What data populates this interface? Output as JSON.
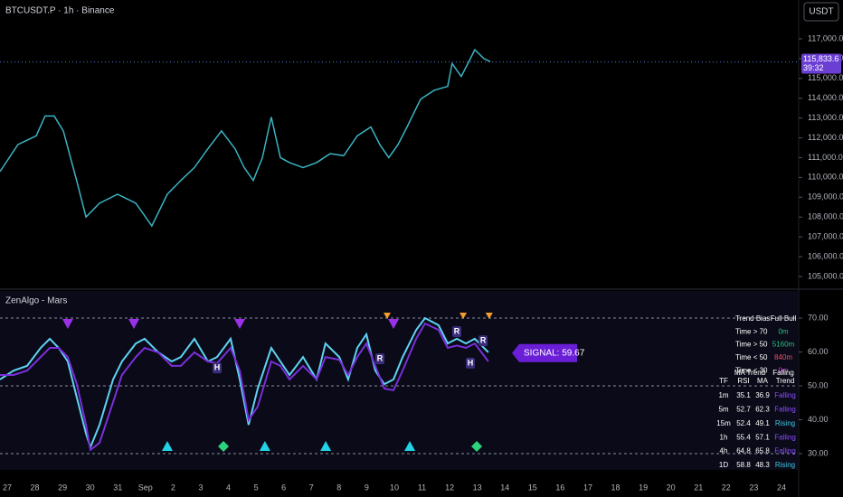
{
  "header": {
    "symbol": "BTCUSDT.P · 1h · Binance",
    "currency_button": "USDT"
  },
  "chart_data": [
    {
      "type": "line",
      "color": "#3bb3c3",
      "x": [
        -0.26,
        0.39,
        1.05,
        1.37,
        1.7,
        2.03,
        2.52,
        2.85,
        3.34,
        3.99,
        4.65,
        5.23,
        5.79,
        6.28,
        6.77,
        7.26,
        7.75,
        8.24,
        8.57,
        8.9,
        9.23,
        9.55,
        9.88,
        10.21,
        10.7,
        11.19,
        11.68,
        12.17,
        12.66,
        13.15,
        13.48,
        13.8,
        14.13,
        14.46,
        14.95,
        15.44,
        15.93,
        16.09,
        16.42,
        16.75,
        16.91,
        17.24,
        17.47
      ],
      "values": [
        110300,
        111660,
        112100,
        113100,
        113100,
        112350,
        109800,
        108000,
        108700,
        109150,
        108700,
        107550,
        109150,
        109850,
        110500,
        111450,
        112350,
        111450,
        110500,
        109850,
        111000,
        113050,
        111000,
        110750,
        110500,
        110750,
        111200,
        111100,
        112100,
        112550,
        111650,
        111000,
        111650,
        112550,
        113950,
        114400,
        114600,
        115750,
        115100,
        116000,
        116450,
        116000,
        115850
      ],
      "xlim": [
        -0.26,
        28.59
      ],
      "ylim": [
        104450,
        118960
      ],
      "yticks": [
        {
          "value": 105000,
          "label": "105,000.0"
        },
        {
          "value": 106000,
          "label": "106,000.0"
        },
        {
          "value": 107000,
          "label": "107,000.0"
        },
        {
          "value": 108000,
          "label": "108,000.0"
        },
        {
          "value": 109000,
          "label": "109,000.0"
        },
        {
          "value": 110000,
          "label": "110,000.0"
        },
        {
          "value": 111000,
          "label": "111,000.0"
        },
        {
          "value": 112000,
          "label": "112,000.0"
        },
        {
          "value": 113000,
          "label": "113,000.0"
        },
        {
          "value": 114000,
          "label": "114,000.0"
        },
        {
          "value": 115000,
          "label": "115,000.0"
        },
        {
          "value": 116000,
          "label": "116,000.0"
        },
        {
          "value": 117000,
          "label": "117,000.0"
        }
      ],
      "last_price": {
        "value": 115833.6,
        "label": "115,833.6"
      },
      "countdown": "39:32",
      "last_price_color": "#6b3fd4"
    },
    {
      "type": "oscillator",
      "title": "ZenAlgo - Mars",
      "x": [
        -0.26,
        0.23,
        0.72,
        1.21,
        1.54,
        1.86,
        2.19,
        2.52,
        2.85,
        3.01,
        3.34,
        3.83,
        4.15,
        4.65,
        4.97,
        5.46,
        5.95,
        6.28,
        6.77,
        7.26,
        7.59,
        8.08,
        8.41,
        8.73,
        9.06,
        9.55,
        9.88,
        10.21,
        10.7,
        11.19,
        11.51,
        12.01,
        12.33,
        12.66,
        12.99,
        13.31,
        13.64,
        13.97,
        14.3,
        14.79,
        15.11,
        15.6,
        15.93,
        16.26,
        16.59,
        16.91,
        17.4
      ],
      "series": [
        {
          "color": "#5fd3f3",
          "values": [
            51.9,
            54.5,
            55.9,
            61.2,
            63.9,
            61.2,
            57.2,
            46.5,
            35.9,
            31.9,
            38.5,
            51.9,
            57.2,
            62.5,
            63.9,
            59.9,
            57.2,
            58.5,
            63.9,
            57.2,
            58.5,
            63.9,
            51.9,
            38.5,
            49.2,
            61.2,
            57.2,
            53.2,
            58.5,
            51.9,
            62.5,
            58.5,
            51.9,
            61.2,
            65.2,
            54.5,
            50.5,
            51.9,
            58.5,
            66.5,
            70,
            67.9,
            62.5,
            63.9,
            62.5,
            63.9,
            59.9
          ]
        },
        {
          "color": "#7a2fd9",
          "values": [
            53.2,
            53.2,
            54.5,
            58.5,
            61.2,
            61.2,
            58.5,
            50.5,
            38.5,
            31.1,
            33.2,
            45.2,
            53.2,
            58.5,
            61.2,
            59.9,
            55.9,
            55.9,
            59.9,
            57.2,
            56.7,
            61.2,
            54.5,
            39.9,
            43.9,
            57.2,
            55.9,
            51.9,
            55.9,
            51.9,
            58.5,
            57.7,
            53.2,
            58.5,
            62.5,
            55.9,
            49.2,
            48.7,
            54.5,
            63.9,
            68.4,
            66.5,
            61.2,
            61.9,
            61.2,
            62.5,
            57.2
          ]
        }
      ],
      "xlim": [
        -0.26,
        28.59
      ],
      "ylim": [
        25.2,
        78
      ],
      "yticks": [
        {
          "value": 70,
          "label": "70.00"
        },
        {
          "value": 60,
          "label": "60.00"
        },
        {
          "value": 50,
          "label": "50.00"
        },
        {
          "value": 40,
          "label": "40.00"
        },
        {
          "value": 30,
          "label": "30.00"
        }
      ],
      "reference_lines": [
        70,
        50,
        30
      ],
      "xticks": [
        {
          "value": 0,
          "label": "27"
        },
        {
          "value": 1,
          "label": "28"
        },
        {
          "value": 2,
          "label": "29"
        },
        {
          "value": 3,
          "label": "30"
        },
        {
          "value": 4,
          "label": "31"
        },
        {
          "value": 5,
          "label": "Sep"
        },
        {
          "value": 6,
          "label": "2"
        },
        {
          "value": 7,
          "label": "3"
        },
        {
          "value": 8,
          "label": "4"
        },
        {
          "value": 9,
          "label": "5"
        },
        {
          "value": 10,
          "label": "6"
        },
        {
          "value": 11,
          "label": "7"
        },
        {
          "value": 12,
          "label": "8"
        },
        {
          "value": 13,
          "label": "9"
        },
        {
          "value": 14,
          "label": "10"
        },
        {
          "value": 15,
          "label": "11"
        },
        {
          "value": 16,
          "label": "12"
        },
        {
          "value": 17,
          "label": "13"
        },
        {
          "value": 18,
          "label": "14"
        },
        {
          "value": 19,
          "label": "15"
        },
        {
          "value": 20,
          "label": "16"
        },
        {
          "value": 21,
          "label": "17"
        },
        {
          "value": 22,
          "label": "18"
        },
        {
          "value": 23,
          "label": "19"
        },
        {
          "value": 24,
          "label": "20"
        },
        {
          "value": 25,
          "label": "21"
        },
        {
          "value": 26,
          "label": "22"
        },
        {
          "value": 27,
          "label": "23"
        },
        {
          "value": 28,
          "label": "24"
        }
      ],
      "markers": [
        {
          "shape": "triangle-down",
          "color": "#9b30e8",
          "x": [
            2.19,
            4.58,
            8.41,
            13.97
          ]
        },
        {
          "shape": "triangle-down-small",
          "color": "#f59e2a",
          "x": [
            13.74,
            16.49,
            17.43
          ]
        },
        {
          "shape": "triangle-up",
          "color": "#22d3e6",
          "x": [
            5.79,
            9.32,
            11.52,
            14.56
          ]
        },
        {
          "shape": "diamond",
          "color": "#2bd47a",
          "x": [
            7.82,
            16.98
          ]
        }
      ],
      "labels": [
        {
          "text": "H",
          "x": 7.59,
          "y": 55.3
        },
        {
          "text": "H",
          "x": 16.75,
          "y": 56.7
        },
        {
          "text": "R",
          "x": 13.48,
          "y": 58
        },
        {
          "text": "R",
          "x": 16.26,
          "y": 66
        },
        {
          "text": "R",
          "x": 17.21,
          "y": 63.3
        }
      ],
      "signal": {
        "label": "SIGNAL: 59.67",
        "value": 59.67
      }
    }
  ],
  "stats_table": {
    "rows": [
      [
        "Trend Bias",
        "Full Bull"
      ],
      [
        "Time > 70",
        "0m"
      ],
      [
        "Time > 50",
        "5160m"
      ],
      [
        "Time < 50",
        "840m"
      ],
      [
        "Time < 30",
        "0m"
      ]
    ],
    "colors": [
      "#ffffff",
      "#26c281",
      "#26c281",
      "#f0506e",
      "#d03fe0"
    ]
  },
  "tf_table": {
    "group_header": [
      "MA Trend",
      "Falling"
    ],
    "header": [
      "TF",
      "RSI",
      "MA",
      "Trend"
    ],
    "rows": [
      [
        "1m",
        35.1,
        36.9,
        "Falling"
      ],
      [
        "5m",
        52.7,
        62.3,
        "Falling"
      ],
      [
        "15m",
        52.4,
        49.1,
        "Rising"
      ],
      [
        "1h",
        55.4,
        57.1,
        "Falling"
      ],
      [
        "4h",
        64.8,
        65.8,
        "Falling"
      ],
      [
        "1D",
        58.8,
        48.3,
        "Rising"
      ]
    ],
    "trend_colors": [
      "#8a4dff",
      "#8a4dff",
      "#3fc8e0",
      "#8a4dff",
      "#8a4dff",
      "#3fc8e0"
    ]
  }
}
